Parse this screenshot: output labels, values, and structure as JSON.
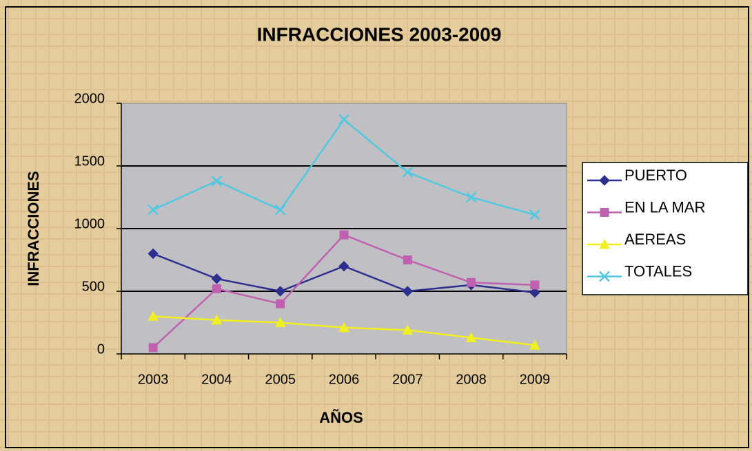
{
  "chart_data": {
    "type": "line",
    "title": "INFRACCIONES 2003-2009",
    "x_label": "AÑOS",
    "y_label": "INFRACCIONES",
    "categories": [
      "2003",
      "2004",
      "2005",
      "2006",
      "2007",
      "2008",
      "2009"
    ],
    "series": [
      {
        "name": "PUERTO",
        "color": "#2e2e8f",
        "marker": "diamond",
        "values": [
          800,
          600,
          500,
          700,
          500,
          550,
          490
        ]
      },
      {
        "name": "EN LA MAR",
        "color": "#c060b0",
        "marker": "square",
        "values": [
          50,
          520,
          400,
          950,
          750,
          570,
          550
        ]
      },
      {
        "name": "AEREAS",
        "color": "#f0f020",
        "marker": "triangle",
        "values": [
          300,
          270,
          250,
          210,
          190,
          130,
          70
        ]
      },
      {
        "name": "TOTALES",
        "color": "#50c8e0",
        "marker": "x",
        "values": [
          1150,
          1380,
          1150,
          1870,
          1450,
          1250,
          1110
        ]
      }
    ],
    "ylim": [
      0,
      2000
    ],
    "yticks": [
      0,
      500,
      1000,
      1500,
      2000
    ],
    "grid": true,
    "legend": "right"
  }
}
